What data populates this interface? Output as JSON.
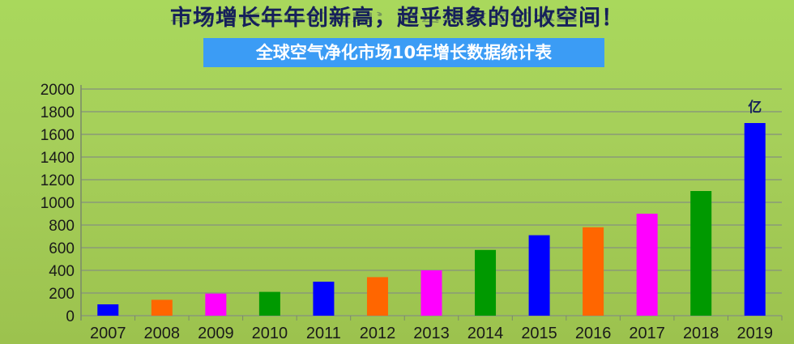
{
  "header": {
    "title": "市场增长年年创新高，超乎想象的创收空间！",
    "subtitle": "全球空气净化市场10年增长数据统计表"
  },
  "chart_data": {
    "type": "bar",
    "categories": [
      "2007",
      "2008",
      "2009",
      "2010",
      "2011",
      "2012",
      "2013",
      "2014",
      "2015",
      "2016",
      "2017",
      "2018",
      "2019"
    ],
    "values": [
      100,
      140,
      195,
      210,
      300,
      340,
      400,
      580,
      710,
      780,
      900,
      1100,
      1700
    ],
    "colors": [
      "#0000ff",
      "#ff6600",
      "#ff00ff",
      "#009900",
      "#0000ff",
      "#ff6600",
      "#ff00ff",
      "#009900",
      "#0000ff",
      "#ff6600",
      "#ff00ff",
      "#009900",
      "#0000ff"
    ],
    "unit_label": "亿",
    "ylim": [
      0,
      2000
    ],
    "yticks": [
      0,
      200,
      400,
      600,
      800,
      1000,
      1200,
      1400,
      1600,
      1800,
      2000
    ],
    "grid": true
  }
}
